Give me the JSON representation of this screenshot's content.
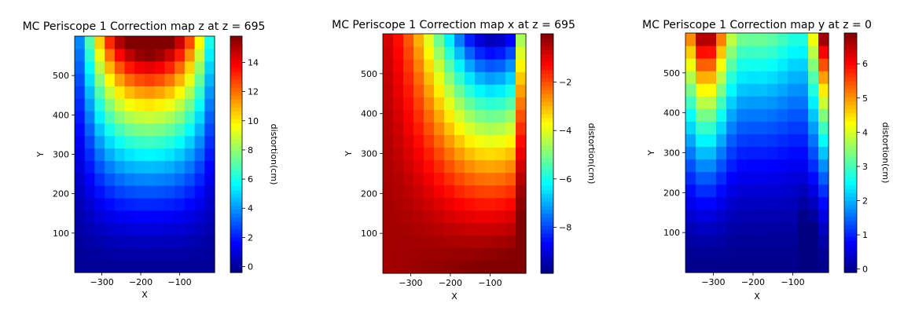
{
  "chart_data": [
    {
      "type": "heatmap",
      "title": "MC Periscope 1 Correction map z at z = 695",
      "xlabel": "X",
      "ylabel": "Y",
      "xlim": [
        -370,
        -10
      ],
      "ylim": [
        0,
        600
      ],
      "xticks": [
        -300,
        -200,
        -100
      ],
      "yticks": [
        100,
        200,
        300,
        400,
        500
      ],
      "colorbar": {
        "label": "distortion(cm)",
        "vmin": -0.4,
        "vmax": 15.8,
        "ticks": [
          0,
          2,
          4,
          6,
          8,
          10,
          12,
          14
        ]
      },
      "colormap": "jet",
      "value_range": [
        -0.4,
        15.8
      ],
      "pattern": "z-distortion: maximum about 15.8 near x=-180 at the top (y~590); U-shaped bowl, about 0 at the bottom and along the side edges"
    },
    {
      "type": "heatmap",
      "title": "MC Periscope 1 Correction map x at z = 695",
      "xlabel": "X",
      "ylabel": "Y",
      "xlim": [
        -370,
        -10
      ],
      "ylim": [
        0,
        600
      ],
      "xticks": [
        -300,
        -200,
        -100
      ],
      "yticks": [
        100,
        200,
        300,
        400,
        500
      ],
      "colorbar": {
        "label": "distortion(cm)",
        "vmin": -9.9,
        "vmax": 0.0,
        "ticks": [
          -8,
          -6,
          -4,
          -2
        ]
      },
      "colormap": "jet",
      "value_range": [
        -9.9,
        0.0
      ],
      "pattern": "x-distortion: minimum about -9.9 near x=-90 at the top; close to 0 in the lower left"
    },
    {
      "type": "heatmap",
      "title": "MC Periscope 1 Correction map y at z = 0",
      "xlabel": "X",
      "ylabel": "Y",
      "xlim": [
        -370,
        -10
      ],
      "ylim": [
        0,
        600
      ],
      "xticks": [
        -300,
        -200,
        -100
      ],
      "yticks": [
        100,
        200,
        300,
        400,
        500
      ],
      "colorbar": {
        "label": "distortion(cm)",
        "vmin": -0.1,
        "vmax": 6.9,
        "ticks": [
          0,
          1,
          2,
          3,
          4,
          5,
          6
        ]
      },
      "colormap": "jet",
      "value_range": [
        -0.1,
        6.9
      ],
      "pattern": "y-distortion: maxima about 6.8 at the top-left (x~-320) and top-right (x~-20) corners; low across the bottom"
    }
  ]
}
